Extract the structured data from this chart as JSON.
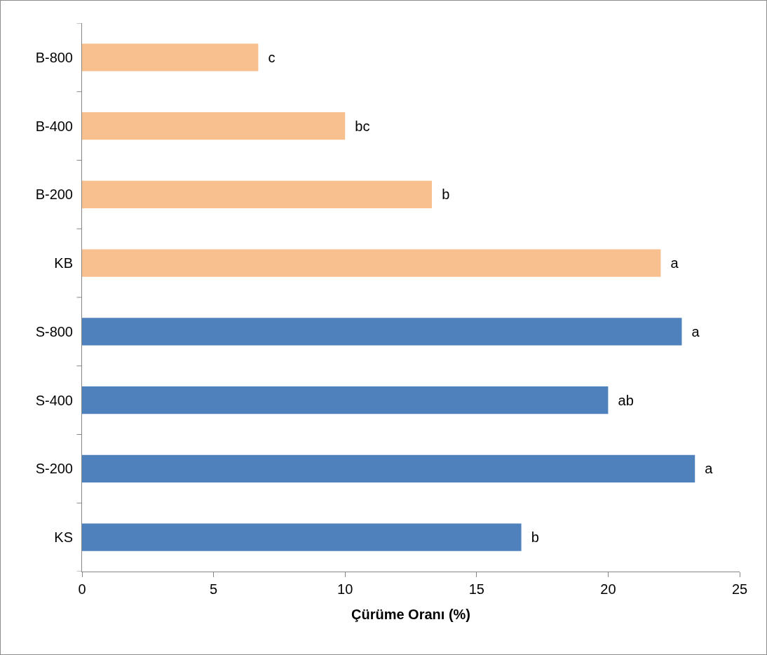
{
  "chart_data": {
    "type": "bar",
    "orientation": "horizontal",
    "xlabel": "Çürüme Oranı (%)",
    "categories": [
      "B-800",
      "B-400",
      "B-200",
      "KB",
      "S-800",
      "S-400",
      "S-200",
      "KS"
    ],
    "values": [
      6.7,
      10.0,
      13.3,
      22.0,
      22.8,
      20.0,
      23.3,
      16.7
    ],
    "colors": [
      "#f9c08f",
      "#f9c08f",
      "#f9c08f",
      "#f9c08f",
      "#4f81bd",
      "#4f81bd",
      "#4f81bd",
      "#4f81bd"
    ],
    "value_labels": [
      "c",
      "bc",
      "b",
      "a",
      "a",
      "ab",
      "a",
      "b"
    ],
    "xlim": [
      0,
      25
    ],
    "xticks": [
      0,
      5,
      10,
      15,
      20,
      25
    ],
    "grid": false
  }
}
